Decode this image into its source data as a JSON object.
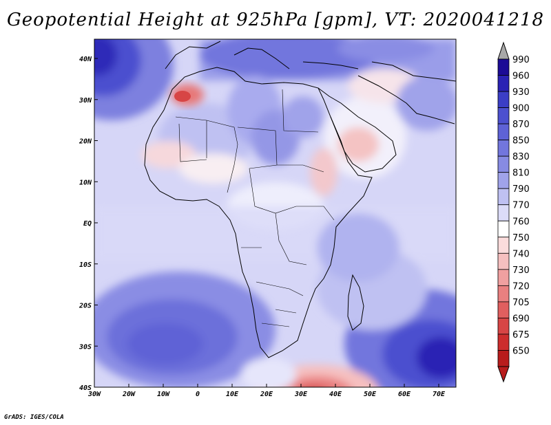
{
  "title": "Geopotential Height at 925hPa [gpm], VT: 2020041218",
  "credit": "GrADS: IGES/COLA",
  "map": {
    "variable": "Geopotential Height",
    "level": "925hPa",
    "units": "gpm",
    "valid_time": "2020041218",
    "lon_labels": [
      "30W",
      "20W",
      "10W",
      "0",
      "10E",
      "20E",
      "30E",
      "40E",
      "50E",
      "60E",
      "70E"
    ],
    "lat_labels": [
      "40N",
      "30N",
      "20N",
      "10N",
      "EQ",
      "10S",
      "20S",
      "30S",
      "40S"
    ]
  },
  "colorbar": {
    "labels": [
      "990",
      "960",
      "930",
      "900",
      "870",
      "850",
      "830",
      "810",
      "790",
      "770",
      "760",
      "750",
      "740",
      "730",
      "720",
      "705",
      "690",
      "675",
      "650"
    ],
    "colors": [
      "#1c0b96",
      "#2a22b4",
      "#3b3ec6",
      "#4c50cf",
      "#5e62d6",
      "#7276dd",
      "#878be3",
      "#a0a3ea",
      "#bfc1f2",
      "#dcdcf8",
      "#ffffff",
      "#fbdcdc",
      "#f6c0c0",
      "#f0a0a0",
      "#e98080",
      "#e05f5f",
      "#d74545",
      "#cc2d2d",
      "#b81c1c"
    ]
  }
}
